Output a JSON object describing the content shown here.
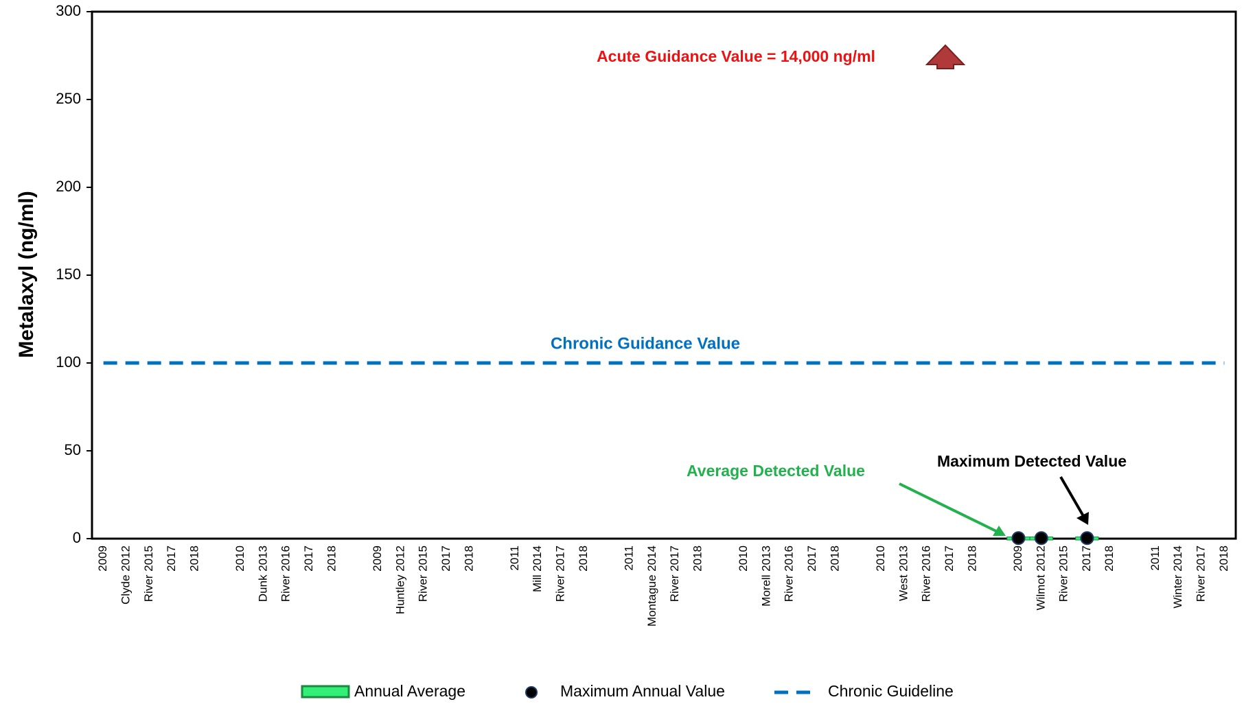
{
  "chart_data": {
    "type": "bar",
    "y_label": "Metalaxyl (ng/ml)",
    "categories": [
      "2009",
      "Clyde 2012",
      "River 2015",
      "2017",
      "2018",
      null,
      "2010",
      "Dunk 2013",
      "River 2016",
      "2017",
      "2018",
      null,
      "2009",
      "Huntley 2012",
      "River 2015",
      "2017",
      "2018",
      null,
      "2011",
      "Mill 2014",
      "River 2017",
      "2018",
      null,
      "2011",
      "Montague 2014",
      "River 2017",
      "2018",
      null,
      "2010",
      "Morell 2013",
      "River 2016",
      "2017",
      "2018",
      null,
      "2010",
      "West 2013",
      "River 2016",
      "2017",
      "2018",
      null,
      "2009",
      "Wilmot 2012",
      "River 2015",
      "2017",
      "2018",
      null,
      "2011",
      "Winter 2014",
      "River 2017",
      "2018"
    ],
    "series": [
      {
        "name": "Annual Average",
        "kind": "bar",
        "color": "#33ee77",
        "values": [
          null,
          null,
          null,
          null,
          null,
          null,
          null,
          null,
          null,
          null,
          null,
          null,
          null,
          null,
          null,
          null,
          null,
          null,
          null,
          null,
          null,
          null,
          null,
          null,
          null,
          null,
          null,
          null,
          null,
          null,
          null,
          null,
          null,
          null,
          null,
          null,
          null,
          null,
          null,
          null,
          0.2,
          0.2,
          null,
          0.2,
          null,
          null,
          null,
          null,
          null,
          null
        ]
      },
      {
        "name": "Maximum Annual Value",
        "kind": "scatter",
        "color": "#000000",
        "values": [
          null,
          null,
          null,
          null,
          null,
          null,
          null,
          null,
          null,
          null,
          null,
          null,
          null,
          null,
          null,
          null,
          null,
          null,
          null,
          null,
          null,
          null,
          null,
          null,
          null,
          null,
          null,
          null,
          null,
          null,
          null,
          null,
          null,
          null,
          null,
          null,
          null,
          null,
          null,
          null,
          0.3,
          0.3,
          null,
          0.3,
          null,
          null,
          null,
          null,
          null,
          null
        ]
      },
      {
        "name": "Chronic Guideline",
        "kind": "line",
        "color": "#0070c0",
        "values": [
          100,
          100,
          100,
          100,
          100,
          100,
          100,
          100,
          100,
          100,
          100,
          100,
          100,
          100,
          100,
          100,
          100,
          100,
          100,
          100,
          100,
          100,
          100,
          100,
          100,
          100,
          100,
          100,
          100,
          100,
          100,
          100,
          100,
          100,
          100,
          100,
          100,
          100,
          100,
          100,
          100,
          100,
          100,
          100,
          100,
          100,
          100,
          100,
          100,
          100
        ]
      }
    ],
    "ylim": [
      0,
      300
    ],
    "yticks": [
      0,
      50,
      100,
      150,
      200,
      250,
      300
    ],
    "annotations": [
      "Acute Guidance Value = 14,000 ng/ml",
      "Chronic Guidance Value",
      "Average Detected Value",
      "Maximum Detected Value"
    ]
  }
}
